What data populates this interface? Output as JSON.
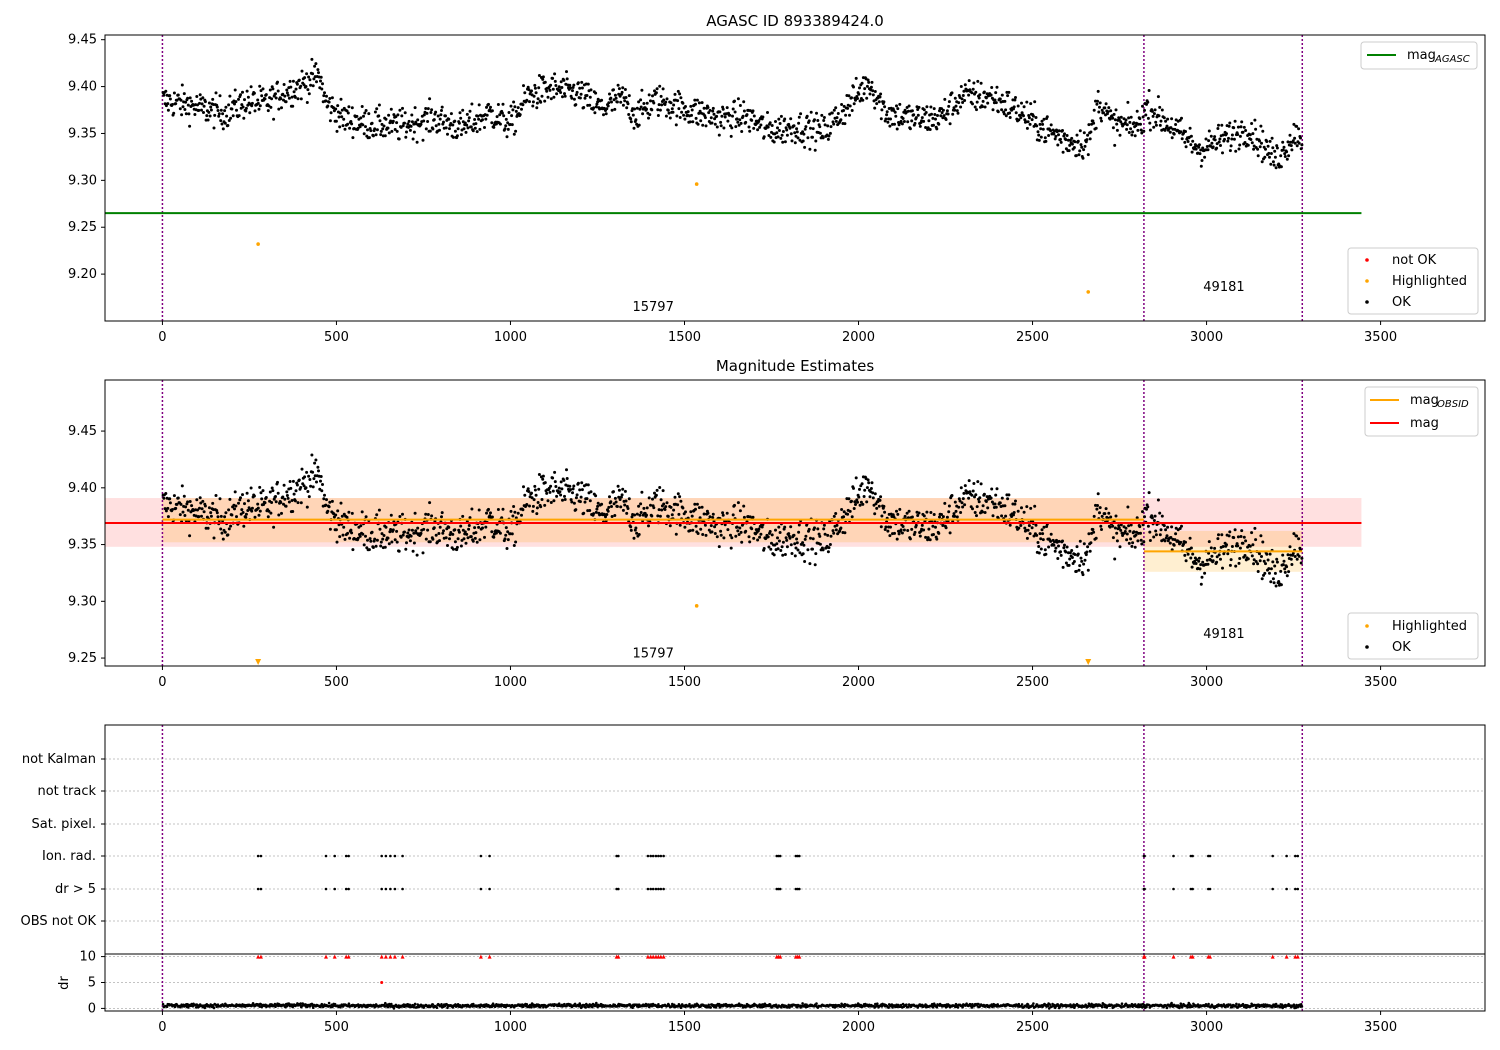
{
  "chart_data": [
    {
      "type": "scatter",
      "title": "AGASC ID 893389424.0",
      "xlim": [
        -165,
        3800
      ],
      "ylim": [
        9.15,
        9.455
      ],
      "xticks": [
        0,
        500,
        1000,
        1500,
        2000,
        2500,
        3000,
        3500
      ],
      "yticks": [
        9.2,
        9.25,
        9.3,
        9.35,
        9.4,
        9.45
      ],
      "legend_top": {
        "position": "top-right",
        "label_main": "mag",
        "label_sub": "AGASC"
      },
      "legend_bottom": {
        "position": "bottom-right",
        "entries": [
          "not OK",
          "Highlighted",
          "OK"
        ]
      },
      "obsid_boundaries": [
        0,
        2820,
        3275
      ],
      "obsid_labels": [
        {
          "text": "15797",
          "x": 1410,
          "y": 9.165
        },
        {
          "text": "49181",
          "x": 3050,
          "y": 9.186
        }
      ],
      "mag_agasc": {
        "x": [
          -165,
          3445
        ],
        "y": 9.265
      },
      "highlighted_points": [
        {
          "x": 275,
          "y": 9.232
        },
        {
          "x": 1535,
          "y": 9.296
        },
        {
          "x": 2660,
          "y": 9.181
        }
      ],
      "ok_trend": [
        [
          0,
          9.385
        ],
        [
          60,
          9.382
        ],
        [
          120,
          9.376
        ],
        [
          180,
          9.372
        ],
        [
          240,
          9.384
        ],
        [
          300,
          9.382
        ],
        [
          340,
          9.392
        ],
        [
          400,
          9.402
        ],
        [
          450,
          9.412
        ],
        [
          470,
          9.382
        ],
        [
          520,
          9.366
        ],
        [
          600,
          9.36
        ],
        [
          680,
          9.358
        ],
        [
          780,
          9.366
        ],
        [
          860,
          9.356
        ],
        [
          940,
          9.372
        ],
        [
          1000,
          9.36
        ],
        [
          1050,
          9.39
        ],
        [
          1120,
          9.398
        ],
        [
          1200,
          9.392
        ],
        [
          1260,
          9.376
        ],
        [
          1320,
          9.388
        ],
        [
          1360,
          9.37
        ],
        [
          1420,
          9.386
        ],
        [
          1500,
          9.376
        ],
        [
          1600,
          9.366
        ],
        [
          1680,
          9.368
        ],
        [
          1740,
          9.353
        ],
        [
          1820,
          9.357
        ],
        [
          1900,
          9.352
        ],
        [
          1970,
          9.38
        ],
        [
          2030,
          9.405
        ],
        [
          2080,
          9.372
        ],
        [
          2150,
          9.366
        ],
        [
          2230,
          9.366
        ],
        [
          2300,
          9.39
        ],
        [
          2380,
          9.389
        ],
        [
          2450,
          9.376
        ],
        [
          2520,
          9.358
        ],
        [
          2600,
          9.342
        ],
        [
          2660,
          9.34
        ],
        [
          2690,
          9.385
        ],
        [
          2730,
          9.36
        ],
        [
          2800,
          9.357
        ],
        [
          2830,
          9.378
        ],
        [
          2900,
          9.357
        ],
        [
          2980,
          9.333
        ],
        [
          3060,
          9.346
        ],
        [
          3120,
          9.355
        ],
        [
          3200,
          9.322
        ],
        [
          3260,
          9.352
        ],
        [
          3275,
          9.342
        ]
      ]
    },
    {
      "type": "scatter",
      "title": "Magnitude Estimates",
      "xlim": [
        -165,
        3800
      ],
      "ylim": [
        9.243,
        9.495
      ],
      "xticks": [
        0,
        500,
        1000,
        1500,
        2000,
        2500,
        3000,
        3500
      ],
      "yticks": [
        9.25,
        9.3,
        9.35,
        9.4,
        9.45
      ],
      "legend_top": {
        "position": "top-right",
        "label_main_1": "mag",
        "label_sub_1": "OBSID",
        "label_2": "mag"
      },
      "legend_bottom": {
        "position": "bottom-right",
        "entries": [
          "Highlighted",
          "OK"
        ]
      },
      "obsid_boundaries": [
        0,
        2820,
        3275
      ],
      "obsid_labels": [
        {
          "text": "15797",
          "x": 1410,
          "y": 9.254
        },
        {
          "text": "49181",
          "x": 3050,
          "y": 9.271
        }
      ],
      "mag": {
        "value": 9.369,
        "band": [
          9.348,
          9.391
        ],
        "x": [
          -165,
          3445
        ]
      },
      "mag_obsid": [
        {
          "x": [
            0,
            2820
          ],
          "value": 9.372,
          "band": [
            9.352,
            9.391
          ]
        },
        {
          "x": [
            2820,
            3275
          ],
          "value": 9.344,
          "band": [
            9.326,
            9.362
          ]
        }
      ],
      "highlighted_points": [
        {
          "x": 1535,
          "y": 9.296
        }
      ],
      "offscale_markers": [
        275,
        2660
      ]
    },
    {
      "type": "scatter",
      "categories": [
        "not Kalman",
        "not track",
        "Sat. pixel.",
        "Ion. rad.",
        "dr > 5",
        "OBS not OK"
      ],
      "flag_x": [
        275,
        283,
        470,
        495,
        528,
        535,
        630,
        642,
        655,
        668,
        690,
        915,
        940,
        1305,
        1310,
        1395,
        1403,
        1410,
        1418,
        1425,
        1432,
        1440,
        1765,
        1770,
        1775,
        1820,
        1825,
        1830,
        2820,
        2822,
        2905,
        2955,
        2960,
        3005,
        3010,
        3190,
        3230,
        3255,
        3262
      ],
      "dr": {
        "ylabel": "dr",
        "yticks": [
          0,
          5,
          10
        ],
        "ylim": [
          -0.5,
          10.5
        ],
        "clip_value": 10,
        "outlier": {
          "x": 630,
          "y": 5.0
        },
        "baseline": 0.5
      },
      "xticks": [
        0,
        500,
        1000,
        1500,
        2000,
        2500,
        3000,
        3500
      ],
      "xlim": [
        -165,
        3800
      ],
      "obsid_boundaries": [
        0,
        2820,
        3275
      ]
    }
  ],
  "colors": {
    "ok": "#000000",
    "not_ok": "#ff0000",
    "highlighted": "#ffa500",
    "mag_agasc": "#008000",
    "mag": "#ff0000",
    "mag_obsid": "#ffa500",
    "boundary": "#800080",
    "grid": "#b0b0b0"
  }
}
